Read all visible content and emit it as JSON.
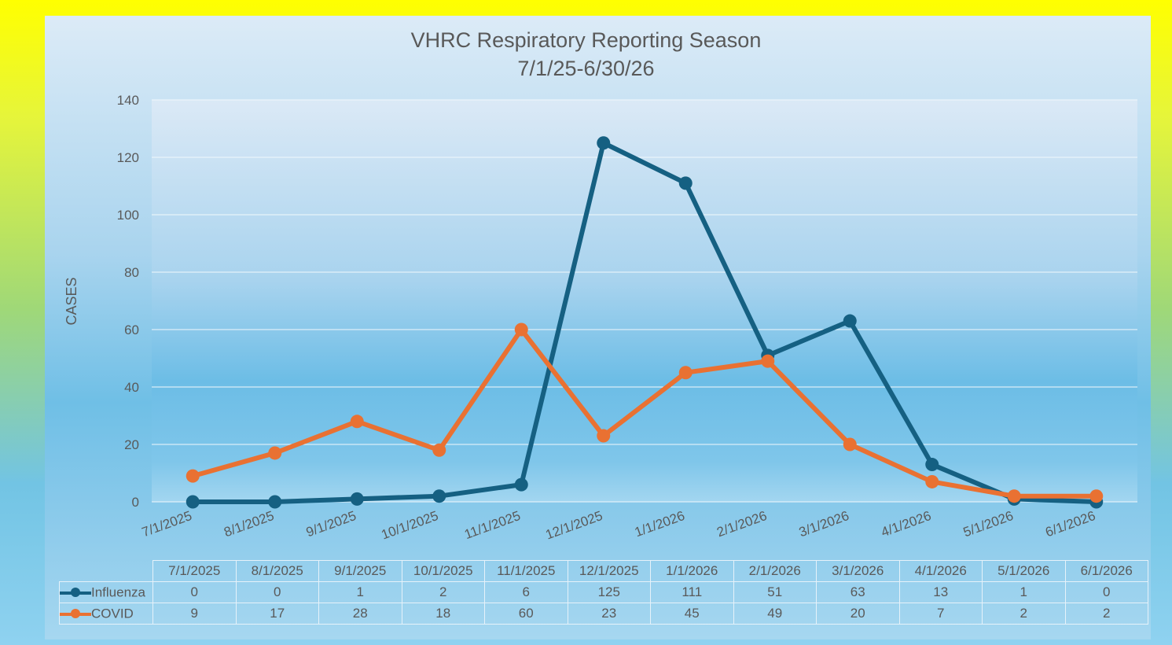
{
  "chart_data": {
    "type": "line",
    "title": "VHRC Respiratory Reporting Season",
    "subtitle": "7/1/25-6/30/26",
    "xlabel": "",
    "ylabel": "CASES",
    "categories": [
      "7/1/2025",
      "8/1/2025",
      "9/1/2025",
      "10/1/2025",
      "11/1/2025",
      "12/1/2025",
      "1/1/2026",
      "2/1/2026",
      "3/1/2026",
      "4/1/2026",
      "5/1/2026",
      "6/1/2026"
    ],
    "ylim": [
      0,
      140
    ],
    "yticks": [
      0,
      20,
      40,
      60,
      80,
      100,
      120,
      140
    ],
    "grid": true,
    "legend": "data table",
    "series": [
      {
        "name": "Influenza",
        "color": "#156082",
        "values": [
          0,
          0,
          1,
          2,
          6,
          125,
          111,
          51,
          63,
          13,
          1,
          0
        ]
      },
      {
        "name": "COVID",
        "color": "#e97132",
        "values": [
          9,
          17,
          28,
          18,
          60,
          23,
          45,
          49,
          20,
          7,
          2,
          2
        ]
      }
    ]
  }
}
